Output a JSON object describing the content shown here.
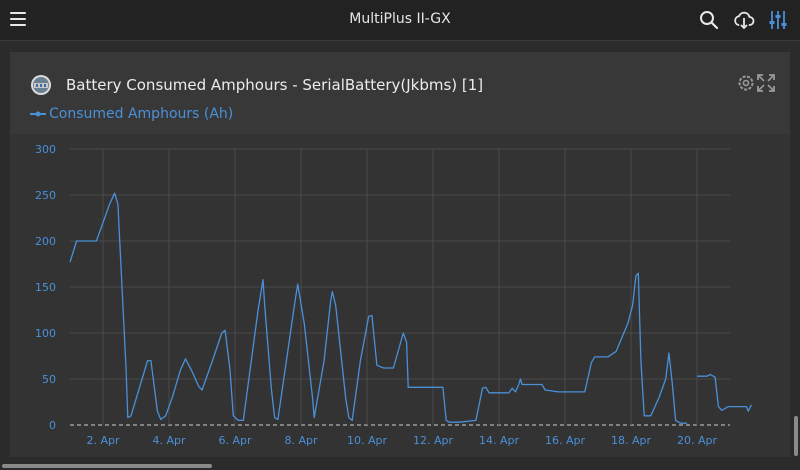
{
  "header": {
    "title": "MultiPlus II-GX",
    "icons": [
      "menu-icon",
      "search-icon",
      "cloud-download-icon",
      "sliders-icon"
    ]
  },
  "card": {
    "title": "Battery Consumed Amphours - SerialBattery(Jkbms) [1]",
    "legend_label": "Consumed Amphours (Ah)",
    "icons": [
      "gear-icon",
      "expand-icon"
    ]
  },
  "colors": {
    "accent": "#4a90d9",
    "series": "#4a90d9",
    "background": "#2b2b2b",
    "panel": "#333333"
  },
  "chart_data": {
    "type": "line",
    "title": "",
    "xlabel": "",
    "ylabel": "",
    "ylim": [
      0,
      300
    ],
    "yticks": [
      0,
      50,
      100,
      150,
      200,
      250,
      300
    ],
    "xlim": [
      1.0,
      21.0
    ],
    "xticks": [
      {
        "value": 2,
        "label": "2. Apr"
      },
      {
        "value": 4,
        "label": "4. Apr"
      },
      {
        "value": 6,
        "label": "6. Apr"
      },
      {
        "value": 8,
        "label": "8. Apr"
      },
      {
        "value": 10,
        "label": "10. Apr"
      },
      {
        "value": 12,
        "label": "12. Apr"
      },
      {
        "value": 14,
        "label": "14. Apr"
      },
      {
        "value": 16,
        "label": "16. Apr"
      },
      {
        "value": 18,
        "label": "18. Apr"
      },
      {
        "value": 20,
        "label": "20. Apr"
      }
    ],
    "grid": true,
    "series": [
      {
        "name": "Consumed Amphours (Ah)",
        "segments": [
          [
            [
              1.0,
              177
            ],
            [
              1.2,
              200
            ],
            [
              1.5,
              200
            ],
            [
              1.8,
              200
            ],
            [
              2.2,
              240
            ],
            [
              2.35,
              252
            ],
            [
              2.45,
              240
            ],
            [
              2.7,
              60
            ],
            [
              2.75,
              8
            ],
            [
              2.85,
              10
            ],
            [
              3.1,
              40
            ],
            [
              3.35,
              70
            ],
            [
              3.45,
              70
            ],
            [
              3.65,
              15
            ],
            [
              3.75,
              6
            ],
            [
              3.9,
              10
            ],
            [
              4.1,
              30
            ],
            [
              4.35,
              60
            ],
            [
              4.5,
              72
            ],
            [
              4.7,
              58
            ],
            [
              4.9,
              42
            ],
            [
              5.0,
              38
            ],
            [
              5.3,
              68
            ],
            [
              5.6,
              100
            ],
            [
              5.7,
              103
            ],
            [
              5.85,
              60
            ],
            [
              5.95,
              10
            ],
            [
              6.1,
              5
            ],
            [
              6.25,
              5
            ],
            [
              6.7,
              125
            ],
            [
              6.85,
              158
            ],
            [
              6.9,
              130
            ],
            [
              7.1,
              40
            ],
            [
              7.2,
              8
            ],
            [
              7.3,
              6
            ],
            [
              7.8,
              130
            ],
            [
              7.9,
              153
            ],
            [
              8.1,
              110
            ],
            [
              8.35,
              30
            ],
            [
              8.4,
              8
            ],
            [
              8.7,
              70
            ],
            [
              8.9,
              135
            ],
            [
              8.95,
              145
            ],
            [
              9.05,
              130
            ],
            [
              9.35,
              30
            ],
            [
              9.45,
              8
            ],
            [
              9.55,
              5
            ],
            [
              9.8,
              70
            ],
            [
              10.05,
              118
            ],
            [
              10.15,
              119
            ],
            [
              10.3,
              65
            ],
            [
              10.5,
              62
            ],
            [
              10.8,
              62
            ],
            [
              11.1,
              100
            ],
            [
              11.2,
              90
            ],
            [
              11.25,
              41
            ],
            [
              11.5,
              41
            ],
            [
              12.0,
              41
            ],
            [
              12.3,
              41
            ],
            [
              12.4,
              5
            ],
            [
              12.5,
              3
            ],
            [
              12.8,
              3
            ],
            [
              13.3,
              5
            ],
            [
              13.5,
              40
            ],
            [
              13.6,
              41
            ],
            [
              13.7,
              35
            ],
            [
              13.9,
              35
            ],
            [
              14.1,
              35
            ],
            [
              14.3,
              35
            ],
            [
              14.4,
              40
            ],
            [
              14.5,
              36
            ],
            [
              14.6,
              44
            ],
            [
              14.65,
              50
            ],
            [
              14.7,
              44
            ],
            [
              15.0,
              44
            ],
            [
              15.3,
              44
            ],
            [
              15.4,
              38
            ],
            [
              15.8,
              36
            ],
            [
              16.2,
              36
            ],
            [
              16.6,
              36
            ],
            [
              16.8,
              68
            ],
            [
              16.9,
              74
            ],
            [
              17.3,
              74
            ],
            [
              17.55,
              80
            ],
            [
              17.9,
              110
            ],
            [
              18.05,
              130
            ],
            [
              18.15,
              162
            ],
            [
              18.22,
              165
            ],
            [
              18.3,
              70
            ],
            [
              18.4,
              10
            ],
            [
              18.6,
              10
            ],
            [
              18.85,
              30
            ],
            [
              19.05,
              50
            ],
            [
              19.15,
              78
            ],
            [
              19.25,
              45
            ],
            [
              19.35,
              5
            ],
            [
              19.5,
              2
            ],
            [
              19.7,
              2
            ]
          ],
          [
            [
              20.0,
              53
            ],
            [
              20.3,
              53
            ],
            [
              20.4,
              55
            ],
            [
              20.55,
              52
            ],
            [
              20.65,
              20
            ],
            [
              20.75,
              16
            ],
            [
              20.95,
              20
            ],
            [
              21.3,
              20
            ],
            [
              21.5,
              20
            ],
            [
              21.55,
              15
            ],
            [
              21.65,
              22
            ]
          ]
        ]
      }
    ]
  }
}
